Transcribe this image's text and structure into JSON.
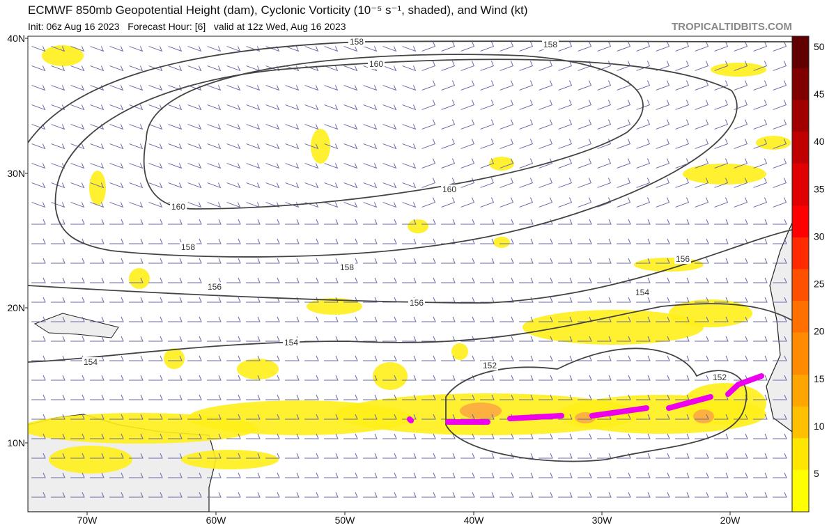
{
  "header": {
    "title": "ECMWF 850mb Geopotential Height (dam), Cyclonic Vorticity (10⁻⁵ s⁻¹, shaded), and Wind (kt)",
    "subtitle": "Init: 06z Aug 16 2023   Forecast Hour: [6]   valid at 12z Wed, Aug 16 2023",
    "credit": "TROPICALTIDBITS.COM"
  },
  "map": {
    "lat_labels": [
      "40N",
      "30N",
      "20N",
      "10N"
    ],
    "lon_labels": [
      "70W",
      "60W",
      "50W",
      "40W",
      "30W",
      "20W"
    ],
    "contour_labels": [
      "158",
      "158",
      "160",
      "160",
      "160",
      "158",
      "158",
      "156",
      "156",
      "156",
      "154",
      "154",
      "154",
      "152",
      "152"
    ]
  },
  "colorbar": {
    "labels": [
      "50",
      "45",
      "40",
      "35",
      "30",
      "25",
      "20",
      "15",
      "10",
      "5"
    ]
  }
}
